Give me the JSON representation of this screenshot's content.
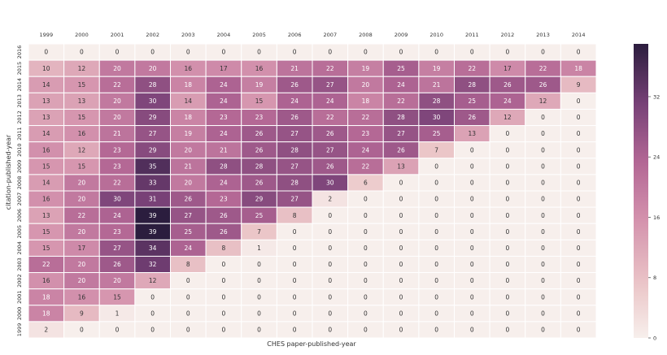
{
  "chart_data": {
    "type": "heatmap",
    "xlabel": "CHES paper-published-year",
    "ylabel": "citation-published-year",
    "x_categories": [
      "1999",
      "2000",
      "2001",
      "2002",
      "2003",
      "2004",
      "2005",
      "2006",
      "2007",
      "2008",
      "2009",
      "2010",
      "2011",
      "2012",
      "2013",
      "2014"
    ],
    "y_categories": [
      "2016",
      "2015",
      "2014",
      "2013",
      "2012",
      "2011",
      "2010",
      "2009",
      "2008",
      "2007",
      "2006",
      "2005",
      "2004",
      "2003",
      "2002",
      "2001",
      "2000",
      "1999"
    ],
    "values": [
      [
        0,
        0,
        0,
        0,
        0,
        0,
        0,
        0,
        0,
        0,
        0,
        0,
        0,
        0,
        0,
        0
      ],
      [
        10,
        12,
        20,
        20,
        16,
        17,
        16,
        21,
        22,
        19,
        25,
        19,
        22,
        17,
        22,
        18
      ],
      [
        14,
        15,
        22,
        28,
        18,
        24,
        19,
        26,
        27,
        20,
        24,
        21,
        28,
        26,
        26,
        9
      ],
      [
        13,
        13,
        20,
        30,
        14,
        24,
        15,
        24,
        24,
        18,
        22,
        28,
        25,
        24,
        12,
        0
      ],
      [
        13,
        15,
        20,
        29,
        18,
        23,
        23,
        26,
        22,
        22,
        28,
        30,
        26,
        12,
        0,
        0
      ],
      [
        14,
        16,
        21,
        27,
        19,
        24,
        26,
        27,
        26,
        23,
        27,
        25,
        13,
        0,
        0,
        0
      ],
      [
        16,
        12,
        23,
        29,
        20,
        21,
        26,
        28,
        27,
        24,
        26,
        7,
        0,
        0,
        0,
        0
      ],
      [
        15,
        15,
        23,
        35,
        21,
        28,
        28,
        27,
        26,
        22,
        13,
        0,
        0,
        0,
        0,
        0
      ],
      [
        14,
        20,
        22,
        33,
        20,
        24,
        26,
        28,
        30,
        6,
        0,
        0,
        0,
        0,
        0,
        0
      ],
      [
        16,
        20,
        30,
        31,
        26,
        23,
        29,
        27,
        2,
        0,
        0,
        0,
        0,
        0,
        0,
        0
      ],
      [
        13,
        22,
        24,
        39,
        27,
        26,
        25,
        8,
        0,
        0,
        0,
        0,
        0,
        0,
        0,
        0
      ],
      [
        15,
        20,
        23,
        39,
        25,
        26,
        7,
        0,
        0,
        0,
        0,
        0,
        0,
        0,
        0,
        0
      ],
      [
        15,
        17,
        27,
        34,
        24,
        8,
        1,
        0,
        0,
        0,
        0,
        0,
        0,
        0,
        0,
        0
      ],
      [
        22,
        20,
        26,
        32,
        8,
        0,
        0,
        0,
        0,
        0,
        0,
        0,
        0,
        0,
        0,
        0
      ],
      [
        16,
        20,
        20,
        12,
        0,
        0,
        0,
        0,
        0,
        0,
        0,
        0,
        0,
        0,
        0,
        0
      ],
      [
        18,
        16,
        15,
        0,
        0,
        0,
        0,
        0,
        0,
        0,
        0,
        0,
        0,
        0,
        0,
        0
      ],
      [
        18,
        9,
        1,
        0,
        0,
        0,
        0,
        0,
        0,
        0,
        0,
        0,
        0,
        0,
        0,
        0
      ],
      [
        2,
        0,
        0,
        0,
        0,
        0,
        0,
        0,
        0,
        0,
        0,
        0,
        0,
        0,
        0,
        0
      ]
    ],
    "vmin": 0,
    "vmax": 39,
    "colorbar_ticks": [
      0,
      8,
      16,
      24,
      32
    ],
    "colormap": "cubehelix-light",
    "color_low": "#f7efec",
    "color_high": "#2b1d3e"
  }
}
